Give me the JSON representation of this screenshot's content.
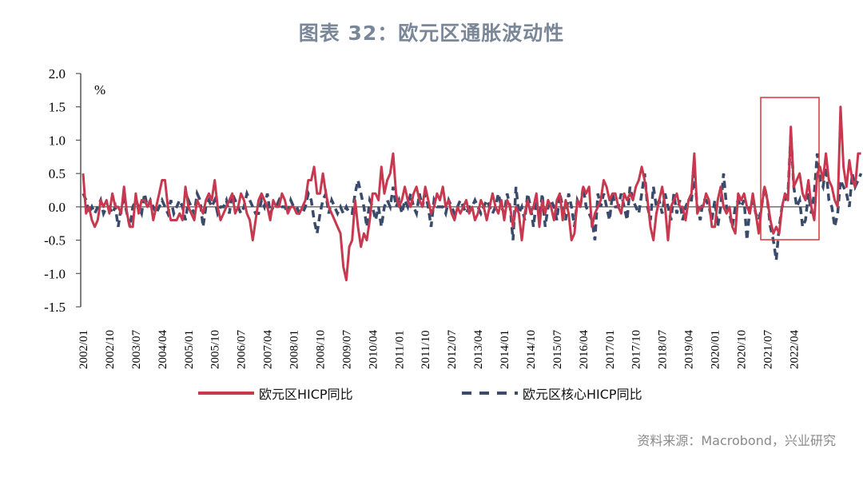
{
  "title": "图表 32：欧元区通胀波动性",
  "source": "资料来源：Macrobond，兴业研究",
  "colors": {
    "hicp": "#C8384F",
    "core_hicp": "#3A4A6B",
    "highlight_box": "#D9343A",
    "axis": "#555555",
    "title": "#7A8799"
  },
  "legend": [
    {
      "label": "欧元区HICP同比",
      "style": "solid"
    },
    {
      "label": "欧元区核心HICP同比",
      "style": "dashed"
    }
  ],
  "chart_data": {
    "type": "line",
    "title": "图表 32：欧元区通胀波动性",
    "xlabel": "",
    "ylabel": "%",
    "ylim": [
      -1.5,
      2.0
    ],
    "yticks": [
      "2.0",
      "1.5",
      "1.0",
      "0.5",
      "0.0",
      "-0.5",
      "-1.0",
      "-1.5"
    ],
    "xticks": [
      "2002/01",
      "2002/10",
      "2003/07",
      "2004/04",
      "2005/01",
      "2005/10",
      "2006/07",
      "2007/04",
      "2008/01",
      "2008/10",
      "2009/07",
      "2010/04",
      "2011/01",
      "2011/10",
      "2012/07",
      "2013/04",
      "2014/01",
      "2014/10",
      "2015/07",
      "2016/04",
      "2017/01",
      "2017/10",
      "2018/07",
      "2019/04",
      "2020/01",
      "2020/10",
      "2021/07",
      "2022/04"
    ],
    "x_start": "2002/01",
    "x_freq": "monthly",
    "grid": false,
    "legend_position": "bottom",
    "annotation": {
      "type": "rectangle",
      "from": "2021/05",
      "to": "2022/09",
      "ymin": -0.5,
      "ymax": 1.65,
      "color": "#D9343A"
    },
    "series": [
      {
        "name": "欧元区HICP同比",
        "style": "solid",
        "values": [
          0.5,
          -0.1,
          0.0,
          -0.2,
          -0.3,
          -0.2,
          0.1,
          0.0,
          0.1,
          -0.1,
          0.2,
          0.0,
          0.0,
          -0.1,
          0.3,
          -0.1,
          -0.3,
          -0.3,
          0.2,
          -0.1,
          0.1,
          0.1,
          0.0,
          0.1,
          -0.2,
          0.0,
          0.2,
          0.4,
          0.4,
          0.0,
          -0.2,
          -0.2,
          -0.2,
          -0.1,
          -0.2,
          0.3,
          0.0,
          -0.1,
          -0.2,
          0.1,
          0.0,
          -0.1,
          0.1,
          0.2,
          0.1,
          0.4,
          0.0,
          -0.2,
          -0.1,
          0.0,
          0.1,
          0.2,
          -0.1,
          0.0,
          0.2,
          0.1,
          -0.1,
          -0.2,
          -0.5,
          -0.2,
          0.1,
          0.2,
          0.1,
          0.0,
          -0.2,
          0.1,
          0.0,
          0.0,
          0.2,
          0.1,
          -0.1,
          0.0,
          0.0,
          -0.1,
          -0.1,
          0.0,
          0.1,
          0.4,
          0.4,
          0.6,
          0.2,
          0.2,
          0.5,
          0.2,
          0.0,
          -0.1,
          -0.2,
          -0.3,
          -0.4,
          -0.9,
          -1.1,
          -0.6,
          -0.5,
          0.1,
          -0.3,
          -0.6,
          -0.4,
          -0.5,
          -0.2,
          0.2,
          0.2,
          0.1,
          0.6,
          0.2,
          0.4,
          0.5,
          0.8,
          0.2,
          0.0,
          0.1,
          0.3,
          0.1,
          0.0,
          0.2,
          0.3,
          0.1,
          0.0,
          0.3,
          0.1,
          -0.1,
          0.0,
          0.2,
          0.1,
          0.3,
          0.0,
          0.1,
          -0.1,
          -0.2,
          0.0,
          -0.1,
          0.0,
          0.1,
          -0.1,
          0.0,
          -0.2,
          -0.1,
          0.1,
          0.0,
          -0.2,
          0.0,
          0.2,
          0.0,
          -0.1,
          0.1,
          -0.2,
          0.1,
          0.0,
          -0.3,
          0.0,
          -0.1,
          -0.5,
          -0.1,
          0.1,
          -0.1,
          0.0,
          0.2,
          -0.3,
          0.1,
          -0.1,
          0.1,
          0.0,
          -0.2,
          0.1,
          0.2,
          -0.2,
          0.1,
          -0.1,
          -0.5,
          -0.4,
          0.1,
          0.0,
          0.3,
          0.2,
          0.3,
          -0.3,
          -0.1,
          0.0,
          0.1,
          0.4,
          0.3,
          0.1,
          0.2,
          0.2,
          0.0,
          -0.1,
          0.2,
          0.1,
          0.2,
          0.1,
          0.3,
          0.4,
          0.6,
          0.4,
          0.1,
          -0.3,
          -0.5,
          -0.1,
          0.1,
          0.3,
          0.0,
          -0.5,
          0.0,
          0.1,
          0.2,
          0.0,
          0.0,
          -0.2,
          0.1,
          0.2,
          0.8,
          -0.1,
          0.0,
          0.0,
          0.2,
          0.1,
          -0.3,
          -0.3,
          0.1,
          0.3,
          0.0,
          -0.1,
          0.0,
          -0.3,
          -0.4,
          0.2,
          0.1,
          0.2,
          0.0,
          -0.1,
          0.2,
          -0.1,
          -0.4,
          0.0,
          0.3,
          0.1,
          -0.2,
          -0.4,
          -0.3,
          -0.4,
          0.0,
          0.2,
          0.1,
          1.2,
          0.3,
          0.4,
          0.5,
          0.2,
          0.1,
          0.4,
          0.0,
          -0.2,
          0.5,
          0.6,
          0.4,
          0.8,
          0.4,
          0.3,
          0.1,
          0.0,
          1.5,
          0.6,
          0.3,
          0.7,
          0.4,
          0.3,
          0.8,
          0.8
        ]
      },
      {
        "name": "欧元区核心HICP同比",
        "style": "dashed",
        "values": [
          0.2,
          0.1,
          -0.1,
          0.0,
          -0.1,
          0.0,
          0.1,
          -0.1,
          0.0,
          0.0,
          -0.1,
          0.0,
          -0.3,
          0.0,
          0.1,
          -0.1,
          -0.3,
          0.0,
          0.1,
          0.0,
          -0.1,
          0.2,
          0.0,
          0.1,
          0.0,
          -0.1,
          0.0,
          0.1,
          0.0,
          -0.1,
          0.1,
          -0.1,
          0.0,
          0.1,
          0.0,
          -0.2,
          0.1,
          0.0,
          -0.1,
          0.2,
          0.1,
          -0.3,
          0.0,
          0.1,
          0.0,
          0.1,
          -0.1,
          0.0,
          0.0,
          0.1,
          -0.1,
          0.2,
          0.1,
          0.0,
          -0.1,
          0.0,
          0.2,
          0.1,
          0.0,
          -0.1,
          -0.1,
          0.1,
          0.0,
          0.2,
          -0.1,
          0.0,
          0.0,
          0.1,
          0.0,
          0.0,
          -0.1,
          0.1,
          0.0,
          0.0,
          -0.1,
          -0.1,
          0.0,
          0.2,
          0.1,
          -0.2,
          -0.4,
          -0.1,
          0.1,
          0.2,
          -0.1,
          0.1,
          0.0,
          -0.1,
          0.0,
          -0.1,
          0.0,
          -0.1,
          -0.1,
          0.2,
          0.4,
          0.2,
          0.0,
          -0.3,
          0.1,
          0.0,
          -0.2,
          0.0,
          -0.3,
          0.0,
          0.1,
          0.0,
          0.3,
          0.0,
          0.1,
          -0.1,
          0.1,
          0.0,
          0.2,
          0.0,
          -0.1,
          0.2,
          0.0,
          0.2,
          0.0,
          -0.3,
          0.1,
          0.0,
          0.0,
          0.0,
          -0.1,
          0.1,
          0.0,
          -0.1,
          0.0,
          0.1,
          0.0,
          -0.1,
          0.0,
          0.0,
          0.1,
          0.0,
          -0.1,
          0.0,
          0.1,
          0.0,
          -0.1,
          0.0,
          0.2,
          0.0,
          -0.1,
          0.2,
          0.0,
          -0.5,
          0.3,
          -0.1,
          0.0,
          -0.2,
          0.2,
          0.0,
          -0.3,
          0.1,
          -0.2,
          0.2,
          -0.3,
          0.0,
          0.1,
          0.0,
          -0.2,
          0.2,
          0.0,
          -0.2,
          0.2,
          0.0,
          -0.3,
          0.1,
          0.0,
          0.3,
          0.0,
          -0.1,
          -0.2,
          -0.5,
          0.2,
          0.0,
          0.2,
          0.0,
          -0.2,
          0.2,
          0.0,
          0.0,
          0.2,
          0.0,
          -0.2,
          0.3,
          0.1,
          0.0,
          -0.1,
          0.2,
          0.5,
          0.0,
          -0.2,
          0.3,
          0.0,
          0.1,
          -0.1,
          0.2,
          0.0,
          -0.2,
          0.2,
          -0.1,
          0.1,
          -0.2,
          0.0,
          0.1,
          0.1,
          0.5,
          0.0,
          -0.2,
          0.1,
          0.1,
          0.0,
          -0.2,
          0.1,
          -0.3,
          0.0,
          0.5,
          0.0,
          -0.1,
          -0.3,
          0.0,
          0.1,
          0.0,
          0.1,
          -0.5,
          0.0,
          0.1,
          -0.1,
          -0.2,
          0.0,
          0.3,
          0.1,
          -0.3,
          -0.5,
          -0.8,
          -0.3,
          0.0,
          0.1,
          0.2,
          1.1,
          0.3,
          0.0,
          0.1,
          -0.3,
          -0.2,
          0.2,
          -0.1,
          0.2,
          0.8,
          0.4,
          0.3,
          0.6,
          0.1,
          0.0,
          -0.3,
          -0.1,
          0.4,
          0.3,
          0.2,
          0.0,
          0.5,
          0.3,
          0.4,
          0.5
        ]
      }
    ]
  }
}
